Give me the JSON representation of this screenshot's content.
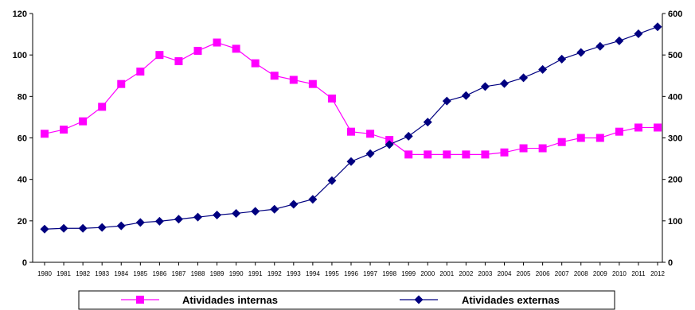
{
  "chart_data": {
    "type": "line",
    "title": "",
    "xlabel": "",
    "ylabel": "",
    "x": [
      "1980",
      "1981",
      "1982",
      "1983",
      "1984",
      "1985",
      "1986",
      "1987",
      "1988",
      "1989",
      "1990",
      "1991",
      "1992",
      "1993",
      "1994",
      "1995",
      "1996",
      "1997",
      "1998",
      "1999",
      "2000",
      "2001",
      "2002",
      "2003",
      "2004",
      "2005",
      "2006",
      "2007",
      "2008",
      "2009",
      "2010",
      "2011",
      "2012"
    ],
    "ylim_left": [
      0,
      120
    ],
    "yticks_left": [
      "0",
      "20",
      "40",
      "60",
      "80",
      "100",
      "120"
    ],
    "ylim_right": [
      0,
      600
    ],
    "yticks_right": [
      "0",
      "100",
      "200",
      "300",
      "400",
      "500",
      "600"
    ],
    "grid": false,
    "legend_position": "bottom",
    "series": [
      {
        "name": "Atividades internas",
        "axis": "left",
        "color": "#ff00ff",
        "marker": "square",
        "values": [
          62,
          64,
          68,
          75,
          86,
          92,
          100,
          97,
          102,
          106,
          103,
          96,
          90,
          88,
          86,
          79,
          63,
          62,
          59,
          52,
          52,
          52,
          52,
          52,
          53,
          55,
          55,
          58,
          60,
          60,
          63,
          65,
          65
        ]
      },
      {
        "name": "Atividades externas",
        "axis": "right",
        "color": "#000080",
        "marker": "diamond",
        "values": [
          80,
          82,
          82,
          84,
          88,
          96,
          99,
          104,
          109,
          114,
          118,
          123,
          128,
          140,
          152,
          197,
          243,
          262,
          284,
          304,
          338,
          389,
          402,
          424,
          431,
          445,
          465,
          490,
          506,
          521,
          534,
          551,
          568
        ]
      }
    ]
  }
}
